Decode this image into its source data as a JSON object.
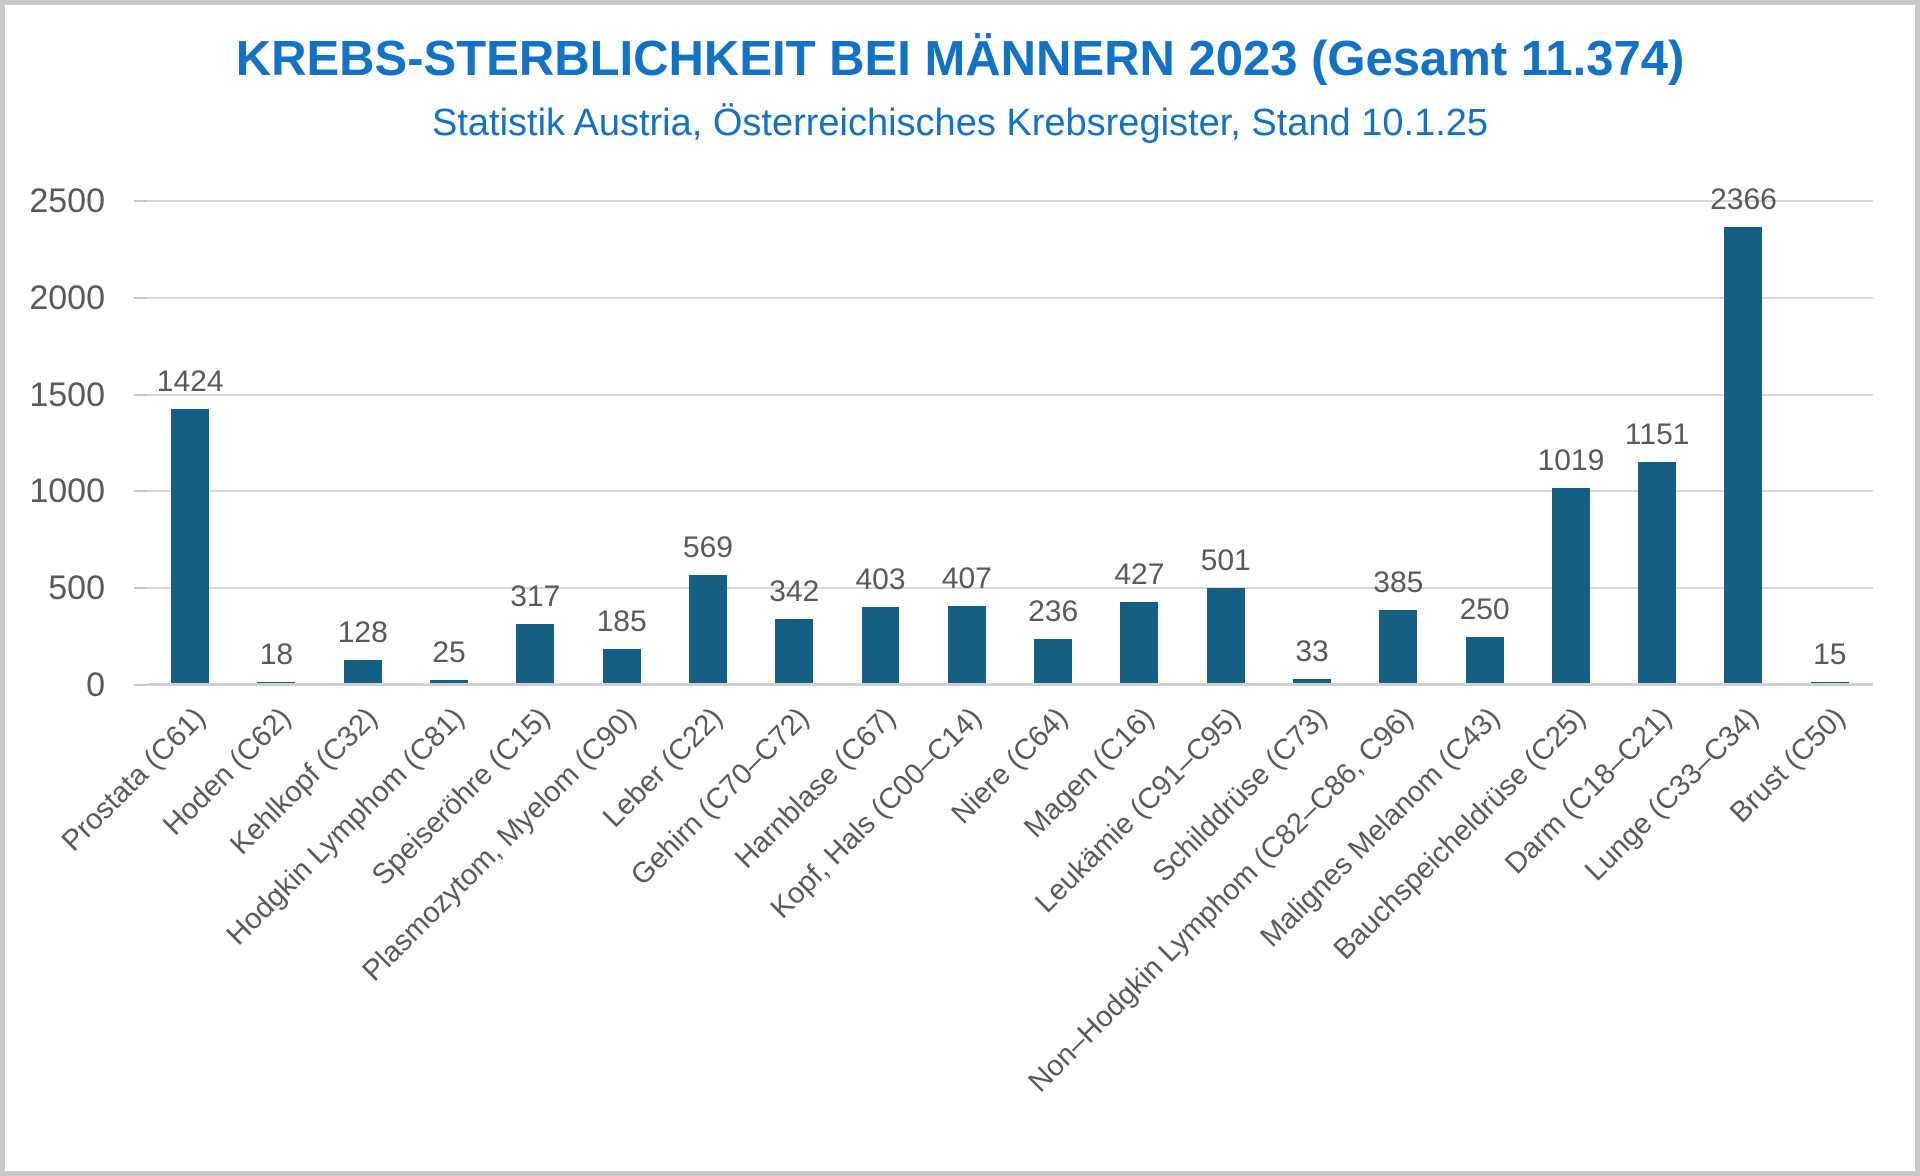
{
  "chart_data": {
    "type": "bar",
    "title": "KREBS-STERBLICHKEIT BEI MÄNNERN 2023 (Gesamt 11.374)",
    "subtitle": "Statistik Austria, Österreichisches Krebsregister, Stand 10.1.25",
    "categories": [
      "Prostata (C61)",
      "Hoden (C62)",
      "Kehlkopf (C32)",
      "Hodgkin Lymphom (C81)",
      "Speiseröhre (C15)",
      "Plasmozytom, Myelom (C90)",
      "Leber (C22)",
      "Gehirn (C70–C72)",
      "Harnblase (C67)",
      "Kopf, Hals (C00–C14)",
      "Niere (C64)",
      "Magen (C16)",
      "Leukämie (C91–C95)",
      "Schilddrüse (C73)",
      "Non–Hodgkin Lymphom (C82–C86, C96)",
      "Malignes Melanom (C43)",
      "Bauchspeicheldrüse (C25)",
      "Darm (C18–C21)",
      "Lunge (C33–C34)",
      "Brust (C50)"
    ],
    "values": [
      1424,
      18,
      128,
      25,
      317,
      185,
      569,
      342,
      403,
      407,
      236,
      427,
      501,
      33,
      385,
      250,
      1019,
      1151,
      2366,
      15
    ],
    "ylim": [
      0,
      2500
    ],
    "yticks": [
      0,
      500,
      1000,
      1500,
      2000,
      2500
    ],
    "grid": "horizontal",
    "legend": "none",
    "xlabel": "",
    "ylabel": "",
    "colors": {
      "bar": "#156082",
      "title": "#1272C6",
      "text": "#595959",
      "grid": "#D9D9D9",
      "axis_line": "#CFCFCF"
    }
  }
}
